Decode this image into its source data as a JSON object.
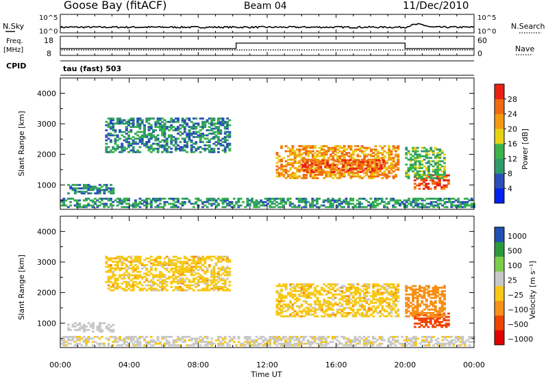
{
  "header": {
    "station": "Goose Bay (fitACF)",
    "beam": "Beam 04",
    "date": "11/Dec/2010"
  },
  "noise_panel": {
    "left_label": "N.Sky",
    "right_label": "N.Search",
    "left_ticks": [
      "10^5",
      "10^0"
    ],
    "right_ticks": [
      "10^5",
      "10^0"
    ]
  },
  "freq_panel": {
    "left_label_1": "Freq.",
    "left_label_2": "[MHz]",
    "right_label": "Nave",
    "left_ticks": [
      "18",
      "8"
    ],
    "right_ticks": [
      "60",
      "0"
    ]
  },
  "cpid": {
    "label": "CPID",
    "mode": "tau (fast) 503"
  },
  "colors": {
    "power": [
      "#0022ee",
      "#2a4fb8",
      "#2e9a6a",
      "#39b34a",
      "#e8d214",
      "#f39a12",
      "#f06a10",
      "#e82212"
    ],
    "velocity": [
      "#e00000",
      "#ee4400",
      "#f79018",
      "#f7c814",
      "#c8c8c8",
      "#7ccd4a",
      "#2a9a3a",
      "#2050b0"
    ]
  },
  "chart_data": [
    {
      "type": "heatmap",
      "name": "power",
      "ylabel": "Slant Range [km]",
      "ylim": [
        200,
        4500
      ],
      "yticks": [
        "1000",
        "2000",
        "3000",
        "4000"
      ],
      "x": [
        "00:00",
        "04:00",
        "08:00",
        "12:00",
        "16:00",
        "20:00",
        "00:00"
      ],
      "colorbar_label": "Power [dB]",
      "colorbar_ticks": [
        "4",
        "8",
        "12",
        "16",
        "20",
        "24",
        "28"
      ],
      "colorbar_range": [
        0,
        30
      ],
      "regions": [
        {
          "t0": 2.6,
          "t1": 9.8,
          "r0": 2050,
          "r1": 3200,
          "v": 9
        },
        {
          "t0": 0.4,
          "t1": 3.0,
          "r0": 700,
          "r1": 1000,
          "v": 9
        },
        {
          "t0": 12.5,
          "t1": 19.6,
          "r0": 1200,
          "r1": 2250,
          "v": 21
        },
        {
          "t0": 14.0,
          "t1": 18.8,
          "r0": 1400,
          "r1": 1800,
          "v": 25
        },
        {
          "t0": 20.5,
          "t1": 22.5,
          "r0": 850,
          "r1": 1300,
          "v": 27
        },
        {
          "t0": 20.0,
          "t1": 22.3,
          "r0": 1200,
          "r1": 2200,
          "v": 13
        },
        {
          "t0": 0,
          "t1": 24,
          "r0": 250,
          "r1": 550,
          "v": 10
        }
      ]
    },
    {
      "type": "heatmap",
      "name": "velocity",
      "ylabel": "Slant Range [km]",
      "ylim": [
        200,
        4500
      ],
      "yticks": [
        "1000",
        "2000",
        "3000",
        "4000"
      ],
      "x": [
        "00:00",
        "04:00",
        "08:00",
        "12:00",
        "16:00",
        "20:00",
        "00:00"
      ],
      "xlabel": "Time UT",
      "colorbar_label": "Velocity [m s⁻¹]",
      "colorbar_ticks": [
        "1000",
        "500",
        "100",
        "25",
        "−25",
        "−100",
        "−500",
        "−1000"
      ],
      "regions": [
        {
          "t0": 2.6,
          "t1": 9.8,
          "r0": 2050,
          "r1": 3200,
          "v": 0
        },
        {
          "t0": 0.4,
          "t1": 3.0,
          "r0": 700,
          "r1": 1000,
          "v": 60
        },
        {
          "t0": 12.5,
          "t1": 19.6,
          "r0": 1200,
          "r1": 2250,
          "v": 0
        },
        {
          "t0": 20.5,
          "t1": 22.5,
          "r0": 850,
          "r1": 1300,
          "v": -150
        },
        {
          "t0": 20.0,
          "t1": 22.3,
          "r0": 1200,
          "r1": 2200,
          "v": -60
        },
        {
          "t0": 0,
          "t1": 24,
          "r0": 250,
          "r1": 550,
          "v": 40
        }
      ]
    }
  ]
}
